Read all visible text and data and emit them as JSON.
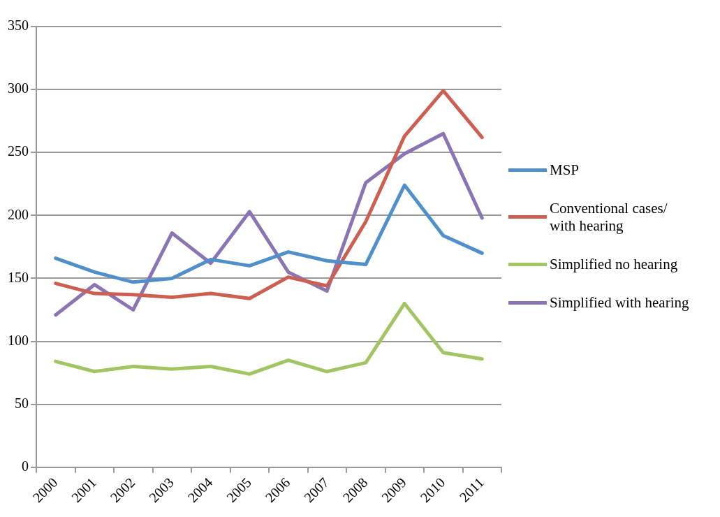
{
  "chart_data": {
    "type": "line",
    "categories": [
      "2000",
      "2001",
      "2002",
      "2003",
      "2004",
      "2005",
      "2006",
      "2007",
      "2008",
      "2009",
      "2010",
      "2011"
    ],
    "series": [
      {
        "name": "MSP",
        "color": "#4f8fca",
        "values": [
          166,
          155,
          147,
          150,
          165,
          160,
          171,
          164,
          161,
          224,
          184,
          170
        ]
      },
      {
        "name": "Conventional cases/ with hearing",
        "color": "#cc5f52",
        "values": [
          146,
          138,
          137,
          135,
          138,
          134,
          151,
          144,
          195,
          263,
          299,
          262
        ]
      },
      {
        "name": "Simplified no hearing",
        "color": "#a2c563",
        "values": [
          84,
          76,
          80,
          78,
          80,
          74,
          85,
          76,
          83,
          130,
          91,
          86
        ]
      },
      {
        "name": "Simplified with hearing",
        "color": "#8b74b3",
        "values": [
          121,
          145,
          125,
          186,
          162,
          203,
          155,
          140,
          226,
          249,
          265,
          198
        ]
      }
    ],
    "ylim": [
      0,
      350
    ],
    "yticks": [
      0,
      50,
      100,
      150,
      200,
      250,
      300,
      350
    ],
    "grid": "y",
    "legend": "right",
    "marker": "none",
    "line_style": "solid"
  }
}
